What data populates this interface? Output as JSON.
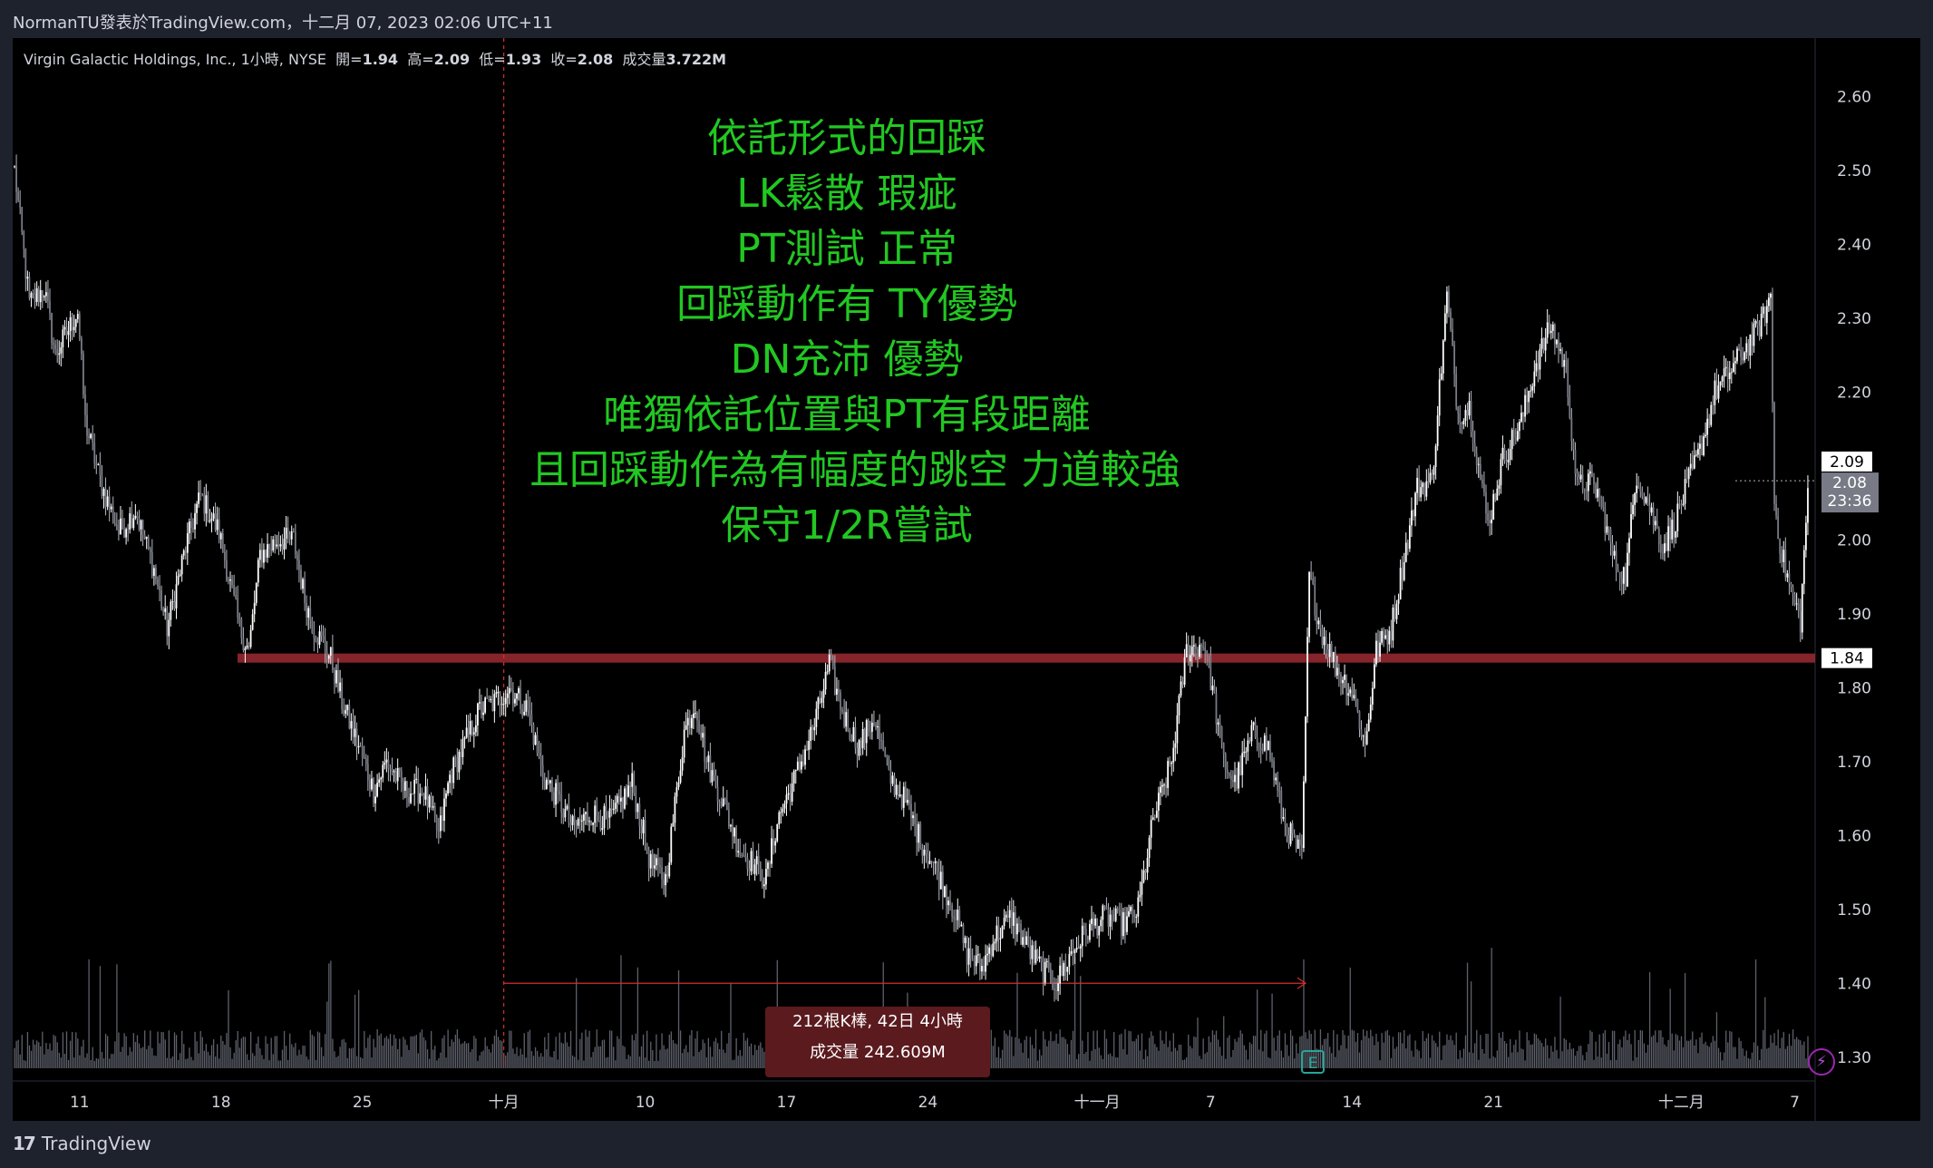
{
  "header": {
    "publisher": "NormanTU發表於TradingView.com",
    "separator": "，",
    "datetime": "十二月 07, 2023 02:06 UTC+11"
  },
  "symbol": {
    "name": "Virgin Galactic Holdings, Inc., 1小時, NYSE",
    "open_label": "開=",
    "open": "1.94",
    "high_label": "高=",
    "high": "2.09",
    "low_label": "低=",
    "low": "1.93",
    "close_label": "收=",
    "close": "2.08",
    "volume_label": "成交量",
    "volume": "3.722M"
  },
  "annotation": {
    "lines": [
      "依託形式的回踩",
      "LK鬆散 瑕疵",
      "PT測試 正常",
      "回踩動作有 TY優勢",
      "DN充沛 優勢",
      "唯獨依託位置與PT有段距離",
      "且回踩動作為有幅度的跳空 力道較強",
      "保守1/2R嘗試"
    ],
    "color": "#22c722"
  },
  "measure": {
    "bars_line": "212根K棒, 42日 4小時",
    "volume_line": "成交量 242.609M"
  },
  "footer": {
    "brand": "TradingView"
  },
  "icons": {
    "earnings": "E",
    "bolt": "⚡"
  },
  "chart_data": {
    "type": "candlestick",
    "y_ticks": [
      "2.60",
      "2.50",
      "2.40",
      "2.30",
      "2.20",
      "2.10",
      "2.00",
      "1.90",
      "1.80",
      "1.70",
      "1.60",
      "1.50",
      "1.40",
      "1.30"
    ],
    "ylim": [
      1.285,
      2.62
    ],
    "x_ticks": [
      {
        "label": "11",
        "index": 35
      },
      {
        "label": "18",
        "index": 111
      },
      {
        "label": "25",
        "index": 187
      },
      {
        "label": "十月",
        "index": 263
      },
      {
        "label": "10",
        "index": 339
      },
      {
        "label": "17",
        "index": 415
      },
      {
        "label": "24",
        "index": 491
      },
      {
        "label": "十一月",
        "index": 582
      },
      {
        "label": "7",
        "index": 643
      },
      {
        "label": "14",
        "index": 719
      },
      {
        "label": "21",
        "index": 795
      },
      {
        "label": "十二月",
        "index": 896
      },
      {
        "label": "7",
        "index": 957
      }
    ],
    "bar_count": 965,
    "anchors": [
      [
        0,
        2.5
      ],
      [
        8,
        2.32
      ],
      [
        16,
        2.34
      ],
      [
        22,
        2.25
      ],
      [
        34,
        2.31
      ],
      [
        38,
        2.16
      ],
      [
        46,
        2.08
      ],
      [
        56,
        2.01
      ],
      [
        65,
        2.04
      ],
      [
        75,
        1.96
      ],
      [
        82,
        1.88
      ],
      [
        92,
        1.99
      ],
      [
        100,
        2.06
      ],
      [
        110,
        2.01
      ],
      [
        121,
        1.88
      ],
      [
        126,
        1.85
      ],
      [
        132,
        1.98
      ],
      [
        142,
        2.0
      ],
      [
        150,
        2.0
      ],
      [
        156,
        1.92
      ],
      [
        161,
        1.88
      ],
      [
        170,
        1.84
      ],
      [
        176,
        1.78
      ],
      [
        185,
        1.72
      ],
      [
        193,
        1.66
      ],
      [
        200,
        1.7
      ],
      [
        210,
        1.66
      ],
      [
        220,
        1.66
      ],
      [
        228,
        1.6
      ],
      [
        234,
        1.68
      ],
      [
        243,
        1.73
      ],
      [
        250,
        1.77
      ],
      [
        258,
        1.78
      ],
      [
        266,
        1.8
      ],
      [
        276,
        1.77
      ],
      [
        284,
        1.68
      ],
      [
        292,
        1.65
      ],
      [
        300,
        1.61
      ],
      [
        310,
        1.63
      ],
      [
        320,
        1.62
      ],
      [
        332,
        1.67
      ],
      [
        342,
        1.56
      ],
      [
        350,
        1.54
      ],
      [
        360,
        1.74
      ],
      [
        366,
        1.78
      ],
      [
        372,
        1.7
      ],
      [
        380,
        1.65
      ],
      [
        390,
        1.58
      ],
      [
        398,
        1.56
      ],
      [
        404,
        1.54
      ],
      [
        410,
        1.62
      ],
      [
        420,
        1.68
      ],
      [
        430,
        1.75
      ],
      [
        438,
        1.83
      ],
      [
        446,
        1.76
      ],
      [
        454,
        1.72
      ],
      [
        462,
        1.76
      ],
      [
        470,
        1.68
      ],
      [
        478,
        1.65
      ],
      [
        486,
        1.6
      ],
      [
        496,
        1.55
      ],
      [
        505,
        1.5
      ],
      [
        512,
        1.44
      ],
      [
        520,
        1.42
      ],
      [
        526,
        1.46
      ],
      [
        536,
        1.49
      ],
      [
        544,
        1.45
      ],
      [
        552,
        1.42
      ],
      [
        560,
        1.4
      ],
      [
        568,
        1.44
      ],
      [
        576,
        1.47
      ],
      [
        586,
        1.49
      ],
      [
        596,
        1.48
      ],
      [
        604,
        1.5
      ],
      [
        612,
        1.62
      ],
      [
        622,
        1.7
      ],
      [
        630,
        1.85
      ],
      [
        640,
        1.86
      ],
      [
        650,
        1.7
      ],
      [
        656,
        1.67
      ],
      [
        666,
        1.74
      ],
      [
        674,
        1.72
      ],
      [
        682,
        1.62
      ],
      [
        692,
        1.57
      ],
      [
        696,
        1.95
      ],
      [
        702,
        1.88
      ],
      [
        710,
        1.83
      ],
      [
        720,
        1.79
      ],
      [
        726,
        1.72
      ],
      [
        732,
        1.85
      ],
      [
        740,
        1.88
      ],
      [
        748,
        1.99
      ],
      [
        754,
        2.07
      ],
      [
        762,
        2.08
      ],
      [
        770,
        2.33
      ],
      [
        776,
        2.17
      ],
      [
        782,
        2.18
      ],
      [
        792,
        2.02
      ],
      [
        800,
        2.11
      ],
      [
        810,
        2.16
      ],
      [
        818,
        2.24
      ],
      [
        826,
        2.29
      ],
      [
        834,
        2.23
      ],
      [
        840,
        2.07
      ],
      [
        846,
        2.08
      ],
      [
        852,
        2.06
      ],
      [
        860,
        1.97
      ],
      [
        866,
        1.95
      ],
      [
        872,
        2.09
      ],
      [
        878,
        2.05
      ],
      [
        886,
        1.99
      ],
      [
        892,
        2.02
      ],
      [
        900,
        2.08
      ],
      [
        906,
        2.12
      ],
      [
        914,
        2.2
      ],
      [
        920,
        2.22
      ],
      [
        928,
        2.25
      ],
      [
        936,
        2.28
      ],
      [
        940,
        2.3
      ],
      [
        944,
        2.33
      ],
      [
        946,
        2.05
      ],
      [
        950,
        1.98
      ],
      [
        955,
        1.93
      ],
      [
        960,
        1.89
      ],
      [
        964,
        2.07
      ]
    ],
    "support_line": {
      "price": 1.84,
      "label": "1.84",
      "color": "#9e2a32"
    },
    "price_labels": [
      {
        "price": 2.09,
        "label": "2.09"
      },
      {
        "price": 2.08,
        "label": "2.08",
        "countdown": "23:36"
      }
    ],
    "measure_range": {
      "start_index": 263,
      "end_index": 694,
      "price": 1.4
    }
  }
}
